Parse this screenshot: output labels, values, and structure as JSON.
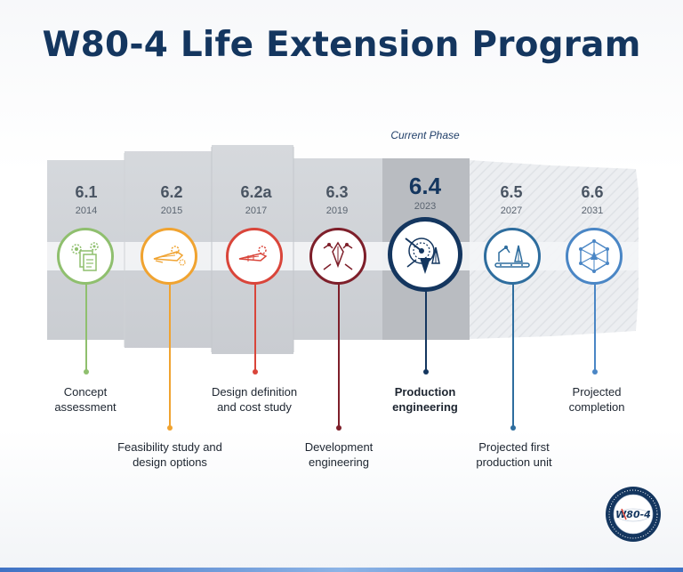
{
  "title": "W80-4 Life Extension Program",
  "current_phase_label": "Current Phase",
  "phases": [
    {
      "num": "6.1",
      "year": "2014",
      "label": "Concept assessment",
      "color": "#8fbf6e",
      "icon": "gears-document-icon"
    },
    {
      "num": "6.2",
      "year": "2015",
      "label": "Feasibility study and design options",
      "color": "#f0a330",
      "icon": "missile-gears-icon"
    },
    {
      "num": "6.2a",
      "year": "2017",
      "label": "Design definition and cost study",
      "color": "#d9453a",
      "icon": "missile-gear-icon"
    },
    {
      "num": "6.3",
      "year": "2019",
      "label": "Development engineering",
      "color": "#7e1f2a",
      "icon": "robot-arm-icon"
    },
    {
      "num": "6.4",
      "year": "2023",
      "label": "Production engineering",
      "color": "#14365f",
      "icon": "production-instruments-icon",
      "current": true
    },
    {
      "num": "6.5",
      "year": "2027",
      "label": "Projected first production unit",
      "color": "#2e6d9e",
      "icon": "assembly-line-icon"
    },
    {
      "num": "6.6",
      "year": "2031",
      "label": "Projected completion",
      "color": "#4a86c5",
      "icon": "network-node-icon"
    }
  ],
  "logo": {
    "text": "W80-4",
    "icon": "w80-4-program-seal-icon"
  }
}
